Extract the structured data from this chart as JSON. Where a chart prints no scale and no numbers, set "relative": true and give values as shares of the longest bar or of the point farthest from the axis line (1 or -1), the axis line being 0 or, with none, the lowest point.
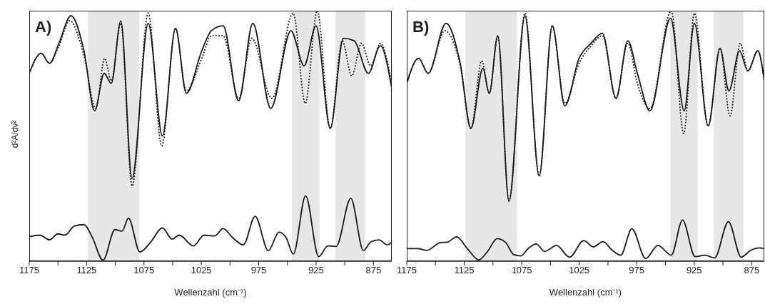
{
  "chart_data": [
    {
      "type": "line",
      "title": "A)",
      "xlabel": "Wellenzahl (cm⁻¹)",
      "ylabel": "d²A/dν̄²",
      "relative": true,
      "xlim": [
        1175,
        859
      ],
      "xticks": [
        1175,
        {
          "value": 1150,
          "label": null
        },
        1125,
        {
          "value": 1100,
          "label": null
        },
        1075,
        {
          "value": 1050,
          "label": null
        },
        1025,
        {
          "value": 1000,
          "label": null
        },
        975,
        {
          "value": 950,
          "label": null
        },
        925,
        {
          "value": 900,
          "label": null
        },
        875
      ],
      "bands": [
        {
          "axis": "x",
          "from": 1124,
          "to": 1079,
          "color": "#e6e7e9"
        },
        {
          "axis": "x",
          "from": 946,
          "to": 922,
          "color": "#e6e7e9"
        },
        {
          "axis": "x",
          "from": 908,
          "to": 882,
          "color": "#e6e7e9"
        }
      ],
      "series": [
        {
          "color": "#1a1a1a",
          "line_style": "dotted",
          "x": [
            1175,
            1164.6,
            1157.4,
            1149.1,
            1139.7,
            1127.3,
            1117,
            1109.3,
            1103.5,
            1095.2,
            1085.4,
            1071.3,
            1059.5,
            1047.5,
            1038.1,
            1024.6,
            1016.3,
            1006,
            992.5,
            981,
            963.5,
            944.9,
            934.4,
            924,
            912.6,
            902.2,
            893.9,
            885.4,
            877.3,
            869,
            859
          ],
          "values": [
            0.75,
            0.83,
            0.79,
            0.86,
            0.96,
            0.82,
            0.61,
            0.81,
            0.72,
            0.95,
            0.3,
            0.99,
            0.46,
            0.93,
            0.68,
            0.81,
            0.9,
            0.9,
            0.65,
            0.89,
            0.65,
            0.99,
            0.63,
            1.0,
            0.53,
            0.88,
            0.74,
            0.87,
            0.78,
            0.87,
            0.71
          ]
        },
        {
          "color": "#1a1a1a",
          "line_style": "solid",
          "x": [
            1175,
            1164.6,
            1157.4,
            1149.1,
            1138.7,
            1127.3,
            1118,
            1109.7,
            1103.5,
            1095.2,
            1085.4,
            1071.3,
            1058.9,
            1047.5,
            1038.1,
            1024.6,
            1016.3,
            1006,
            992.5,
            980.1,
            964.5,
            946.9,
            935.4,
            925,
            912.6,
            901.2,
            891.8,
            879.4,
            869,
            859
          ],
          "values": [
            0.75,
            0.83,
            0.79,
            0.87,
            0.98,
            0.84,
            0.6,
            0.75,
            0.71,
            0.96,
            0.33,
            0.95,
            0.5,
            0.93,
            0.67,
            0.84,
            0.92,
            0.94,
            0.64,
            0.95,
            0.61,
            0.92,
            0.78,
            0.94,
            0.53,
            0.89,
            0.88,
            0.75,
            0.86,
            0.69
          ]
        },
        {
          "color": "#1a1a1a",
          "line_style": "solid",
          "x": [
            1175,
            1165.7,
            1157.4,
            1150.1,
            1143.9,
            1135.6,
            1127.3,
            1120.3,
            1110.7,
            1100.3,
            1094.1,
            1088.5,
            1078.6,
            1069.2,
            1058.9,
            1050.5,
            1044.3,
            1031.9,
            1022.6,
            1013.3,
            1006,
            997.7,
            988.4,
            978.1,
            966.6,
            957.3,
            951.1,
            944.8,
            934.1,
            922.7,
            914.8,
            907.5,
            894.7,
            883.7,
            877.5,
            870.2,
            862.9,
            859
          ],
          "values": [
            0.098,
            0.104,
            0.085,
            0.109,
            0.104,
            0.141,
            0.146,
            0.098,
            0.004,
            0.126,
            0.12,
            0.172,
            0.037,
            0.076,
            0.133,
            0.088,
            0.104,
            0.061,
            0.104,
            0.101,
            0.13,
            0.094,
            0.065,
            0.179,
            0.042,
            0.116,
            0.094,
            0.028,
            0.261,
            0.018,
            0.061,
            0.059,
            0.251,
            0.042,
            0.076,
            0.085,
            0.065,
            0.076
          ]
        }
      ]
    },
    {
      "type": "line",
      "title": "B)",
      "xlabel": "Wellenzahl (cm⁻¹)",
      "relative": true,
      "xlim": [
        1175,
        864
      ],
      "xticks": [
        1175,
        {
          "value": 1150,
          "label": null
        },
        1125,
        {
          "value": 1100,
          "label": null
        },
        1075,
        {
          "value": 1050,
          "label": null
        },
        1025,
        {
          "value": 1000,
          "label": null
        },
        975,
        {
          "value": 950,
          "label": null
        },
        925,
        {
          "value": 900,
          "label": null
        },
        875
      ],
      "bands": [
        {
          "axis": "x",
          "from": 1124,
          "to": 1079,
          "color": "#e6e7e9"
        },
        {
          "axis": "x",
          "from": 946,
          "to": 922,
          "color": "#e6e7e9"
        },
        {
          "axis": "x",
          "from": 908,
          "to": 882,
          "color": "#e6e7e9"
        }
      ],
      "series": [
        {
          "color": "#1a1a1a",
          "line_style": "dotted",
          "x": [
            1175,
            1164.7,
            1156.4,
            1141.9,
            1128.5,
            1119.2,
            1109.8,
            1103.2,
            1095.8,
            1086.1,
            1072.2,
            1059.8,
            1048.4,
            1037.5,
            1025.1,
            1014.7,
            1004.8,
            993,
            982.7,
            974.4,
            963.5,
            944.9,
            934.1,
            924.8,
            912.8,
            902.5,
            893.8,
            884.9,
            878.3,
            869.6,
            864
          ],
          "values": [
            0.71,
            0.81,
            0.75,
            0.92,
            0.78,
            0.53,
            0.8,
            0.67,
            0.9,
            0.24,
            0.99,
            0.34,
            0.94,
            0.63,
            0.79,
            0.86,
            0.9,
            0.65,
            0.87,
            0.71,
            0.61,
            1.0,
            0.51,
            0.99,
            0.54,
            0.85,
            0.58,
            0.87,
            0.76,
            0.84,
            0.72
          ]
        },
        {
          "color": "#1a1a1a",
          "line_style": "solid",
          "x": [
            1175,
            1164.7,
            1156.4,
            1140.9,
            1128.5,
            1119.2,
            1108.8,
            1103.2,
            1095.8,
            1086.1,
            1072.2,
            1059.8,
            1048.4,
            1037.5,
            1025.1,
            1014.7,
            1004.8,
            993,
            982.7,
            974.4,
            963.5,
            945.5,
            933.7,
            924.8,
            912.8,
            902.5,
            894.8,
            885.5,
            878.3,
            869.6,
            864
          ],
          "values": [
            0.71,
            0.81,
            0.75,
            0.95,
            0.79,
            0.53,
            0.77,
            0.67,
            0.9,
            0.24,
            0.98,
            0.34,
            0.94,
            0.62,
            0.81,
            0.87,
            0.91,
            0.65,
            0.88,
            0.75,
            0.6,
            0.97,
            0.6,
            0.95,
            0.54,
            0.85,
            0.68,
            0.84,
            0.76,
            0.84,
            0.72
          ]
        },
        {
          "color": "#1a1a1a",
          "line_style": "solid",
          "x": [
            1175,
            1165.7,
            1157.4,
            1146,
            1139.8,
            1131.6,
            1122.3,
            1112.3,
            1104.7,
            1096.4,
            1089.2,
            1081.9,
            1075.7,
            1069.5,
            1062.3,
            1055.1,
            1044.7,
            1033.4,
            1021,
            1012.7,
            1004.4,
            996.1,
            988.9,
            979.2,
            967.2,
            956.4,
            944.9,
            935.1,
            924.2,
            915.5,
            907.2,
            895.2,
            884.1,
            876.3,
            868.1,
            864
          ],
          "values": [
            0.05,
            0.05,
            0.043,
            0.074,
            0.076,
            0.097,
            0.05,
            0.005,
            0.039,
            0.09,
            0.076,
            0.026,
            0.021,
            0.05,
            0.069,
            0.039,
            0.063,
            0.016,
            0.082,
            0.057,
            0.078,
            0.043,
            0.024,
            0.129,
            0.011,
            0.063,
            0.024,
            0.164,
            0.018,
            0.024,
            0.013,
            0.158,
            0.016,
            0.042,
            0.053,
            0.05
          ]
        }
      ]
    }
  ]
}
